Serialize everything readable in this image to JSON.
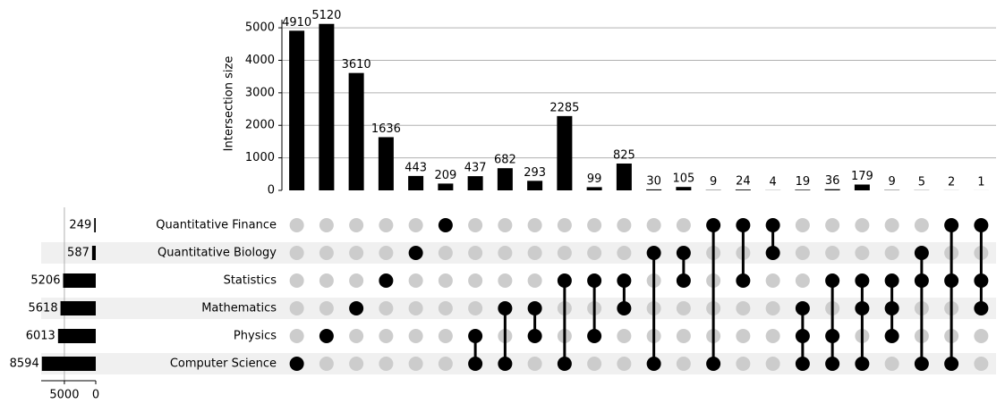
{
  "chart_data": {
    "type": "upset",
    "ylabel": "Intersection size",
    "sets": [
      {
        "name": "Quantitative Finance",
        "size": 249
      },
      {
        "name": "Quantitative Biology",
        "size": 587
      },
      {
        "name": "Statistics",
        "size": 5206
      },
      {
        "name": "Mathematics",
        "size": 5618
      },
      {
        "name": "Physics",
        "size": 6013
      },
      {
        "name": "Computer Science",
        "size": 8594
      }
    ],
    "intersections": [
      {
        "size": 4910,
        "sets": [
          5
        ]
      },
      {
        "size": 5120,
        "sets": [
          4
        ]
      },
      {
        "size": 3610,
        "sets": [
          3
        ]
      },
      {
        "size": 1636,
        "sets": [
          2
        ]
      },
      {
        "size": 443,
        "sets": [
          1
        ]
      },
      {
        "size": 209,
        "sets": [
          0
        ]
      },
      {
        "size": 437,
        "sets": [
          4,
          5
        ]
      },
      {
        "size": 682,
        "sets": [
          3,
          5
        ]
      },
      {
        "size": 293,
        "sets": [
          3,
          4
        ]
      },
      {
        "size": 2285,
        "sets": [
          2,
          5
        ]
      },
      {
        "size": 99,
        "sets": [
          2,
          4
        ]
      },
      {
        "size": 825,
        "sets": [
          2,
          3
        ]
      },
      {
        "size": 30,
        "sets": [
          1,
          5
        ]
      },
      {
        "size": 105,
        "sets": [
          1,
          2
        ]
      },
      {
        "size": 9,
        "sets": [
          0,
          5
        ]
      },
      {
        "size": 24,
        "sets": [
          0,
          2
        ]
      },
      {
        "size": 4,
        "sets": [
          0,
          1
        ]
      },
      {
        "size": 19,
        "sets": [
          3,
          4,
          5
        ]
      },
      {
        "size": 36,
        "sets": [
          2,
          4,
          5
        ]
      },
      {
        "size": 179,
        "sets": [
          2,
          3,
          5
        ]
      },
      {
        "size": 9,
        "sets": [
          2,
          3,
          4
        ]
      },
      {
        "size": 5,
        "sets": [
          1,
          2,
          5
        ]
      },
      {
        "size": 2,
        "sets": [
          0,
          2,
          5
        ]
      },
      {
        "size": 1,
        "sets": [
          0,
          2,
          3
        ]
      }
    ],
    "ylim": [
      0,
      5250
    ],
    "yticks": [
      0,
      1000,
      2000,
      3000,
      4000,
      5000
    ],
    "set_size_lim": [
      0,
      8700
    ],
    "set_size_ticks": [
      0,
      5000
    ],
    "grid": true,
    "color": "#000000"
  }
}
